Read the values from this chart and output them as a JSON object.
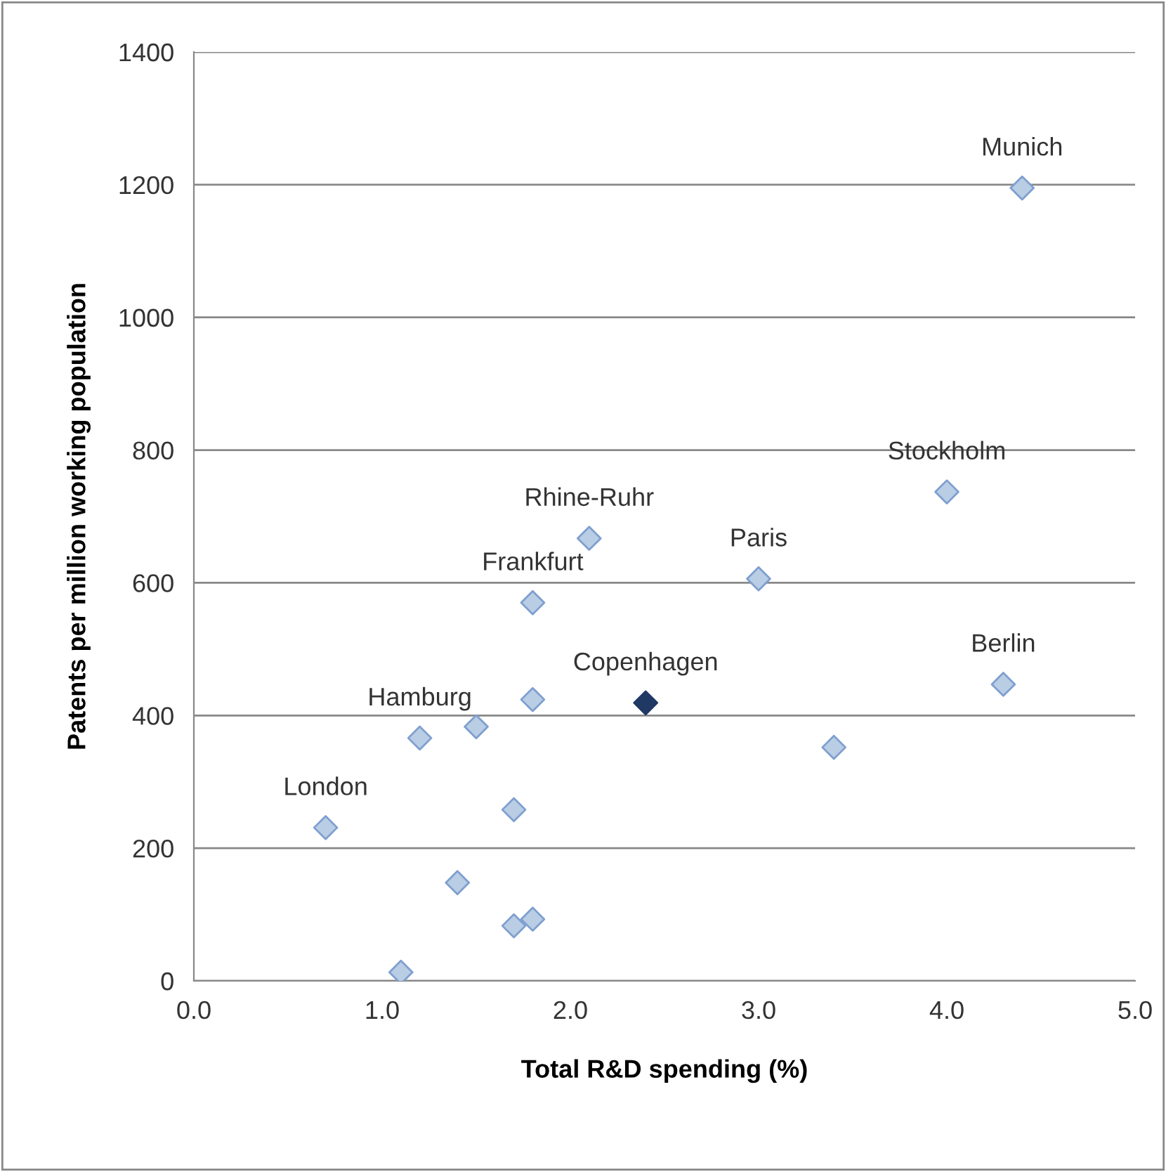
{
  "chart_data": {
    "type": "scatter",
    "xlabel": "Total R&D spending (%)",
    "ylabel": "Patents per million working population",
    "series": [
      {
        "color": "#b9cde5",
        "x": [
          4.4,
          4.0,
          2.1,
          3.0,
          1.8,
          4.3,
          1.8,
          1.2,
          1.5,
          3.4,
          0.7,
          1.7,
          1.4,
          1.7,
          1.8,
          1.1
        ],
        "values": [
          1195,
          737,
          667,
          606,
          570,
          447,
          424,
          366,
          383,
          352,
          231,
          258,
          148,
          83,
          93,
          13
        ]
      },
      {
        "color": "#1f3864",
        "x": [
          2.4
        ],
        "values": [
          419
        ]
      }
    ],
    "annotations": [
      {
        "text": "Munich",
        "x": 4.4,
        "y": 1195
      },
      {
        "text": "Stockholm",
        "x": 4.0,
        "y": 737
      },
      {
        "text": "Rhine-Ruhr",
        "x": 2.1,
        "y": 667
      },
      {
        "text": "Paris",
        "x": 3.0,
        "y": 606
      },
      {
        "text": "Frankfurt",
        "x": 1.8,
        "y": 570
      },
      {
        "text": "Copenhagen",
        "x": 2.4,
        "y": 419
      },
      {
        "text": "Berlin",
        "x": 4.3,
        "y": 447
      },
      {
        "text": "Hamburg",
        "x": 1.2,
        "y": 366
      },
      {
        "text": "London",
        "x": 0.7,
        "y": 231
      }
    ],
    "xlim": [
      0,
      5
    ],
    "xticks": [
      {
        "value": 0,
        "label": "0.0"
      },
      {
        "value": 1,
        "label": "1.0"
      },
      {
        "value": 2,
        "label": "2.0"
      },
      {
        "value": 3,
        "label": "3.0"
      },
      {
        "value": 4,
        "label": "4.0"
      },
      {
        "value": 5,
        "label": "5.0"
      }
    ],
    "ylim": [
      0,
      1400
    ],
    "yticks": [
      0,
      200,
      400,
      600,
      800,
      1000,
      1200,
      1400
    ],
    "grid": "y",
    "marker": "diamond"
  }
}
